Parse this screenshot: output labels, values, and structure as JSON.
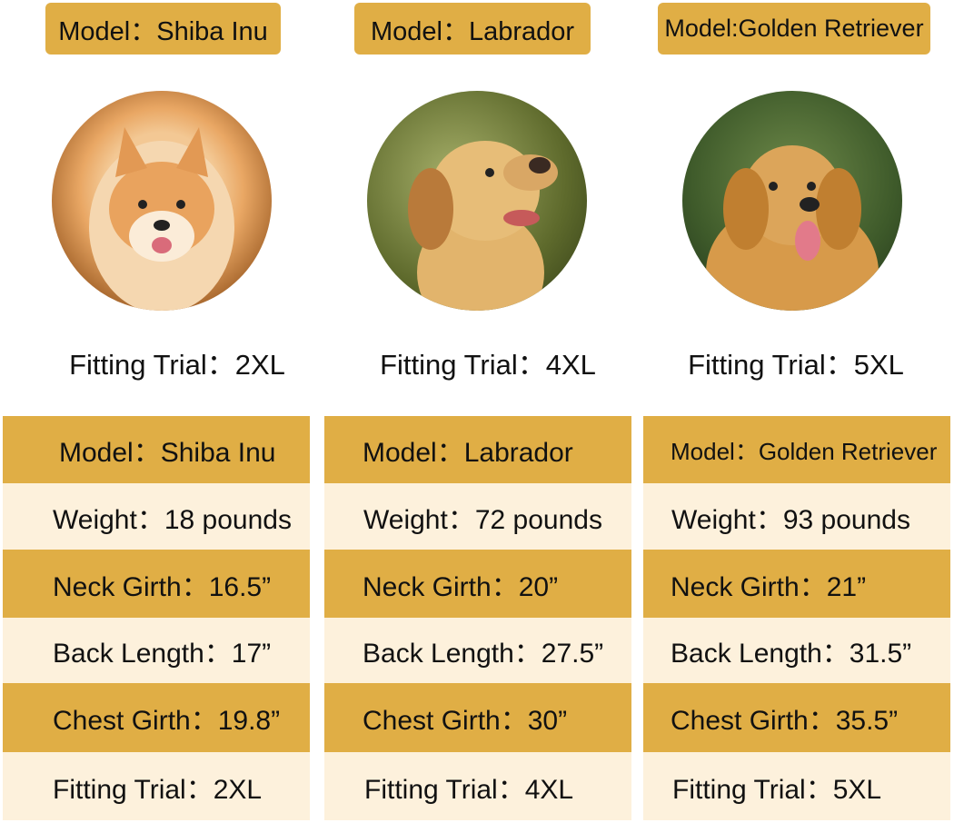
{
  "colors": {
    "gold": "#e0ae45",
    "cream": "#fdf1dc"
  },
  "dogs": [
    {
      "model_label": "Model：Shiba Inu",
      "photo": "shiba-inu-photo",
      "fitting_trial": "Fitting Trial：2XL",
      "table": {
        "model": "Model：Shiba Inu",
        "weight": "Weight：18 pounds",
        "neck": "Neck Girth：16.5”",
        "back": "Back Length：17”",
        "chest": "Chest Girth：19.8”",
        "fitting": "Fitting Trial：2XL"
      }
    },
    {
      "model_label": "Model：Labrador",
      "photo": "labrador-photo",
      "fitting_trial": "Fitting Trial：4XL",
      "table": {
        "model": "Model：Labrador",
        "weight": "Weight：72 pounds",
        "neck": "Neck Girth：20”",
        "back": "Back Length：27.5”",
        "chest": "Chest Girth：30”",
        "fitting": "Fitting Trial：4XL"
      }
    },
    {
      "model_label": "Model:Golden Retriever",
      "photo": "golden-retriever-photo",
      "fitting_trial": "Fitting Trial：5XL",
      "table": {
        "model": "Model：Golden Retriever",
        "weight": "Weight：93 pounds",
        "neck": "Neck Girth：21”",
        "back": "Back Length：31.5”",
        "chest": "Chest Girth：35.5”",
        "fitting": "Fitting Trial：5XL"
      }
    }
  ]
}
